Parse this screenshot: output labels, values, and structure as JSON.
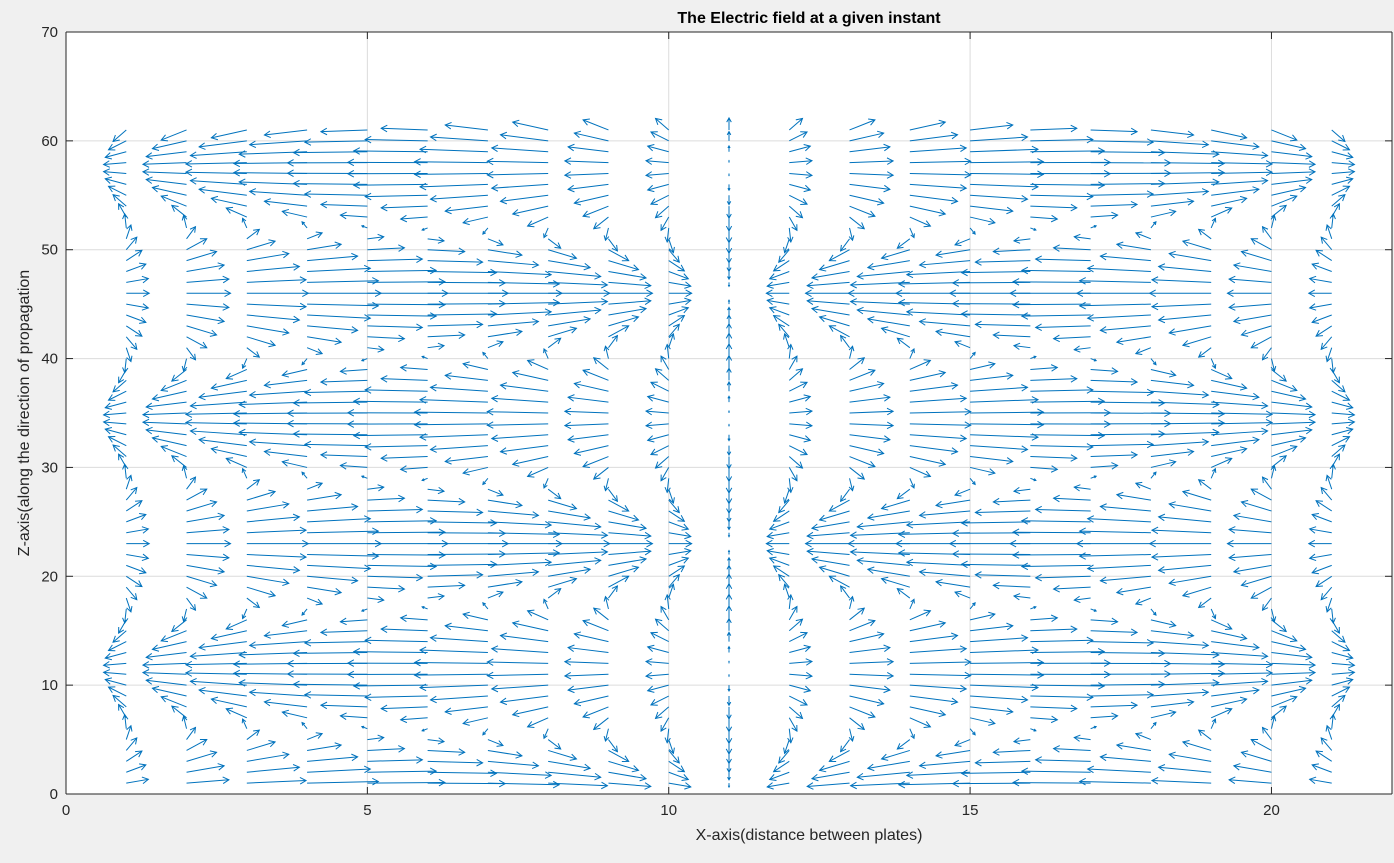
{
  "chart_data": {
    "type": "quiver",
    "title": "The Electric field at a given instant",
    "xlabel": "X-axis(distance between plates)",
    "ylabel": "Z-axis(along the direction of propagation",
    "xlim": [
      0,
      22
    ],
    "ylim": [
      0,
      70
    ],
    "xticks": [
      0,
      5,
      10,
      15,
      20
    ],
    "yticks": [
      0,
      10,
      20,
      30,
      40,
      50,
      60,
      70
    ],
    "grid": true,
    "box": "top-right",
    "series": [
      {
        "color": "#0072bd",
        "x_values": [
          1,
          2,
          3,
          4,
          5,
          6,
          7,
          8,
          9,
          10,
          11,
          12,
          13,
          14,
          15,
          16,
          17,
          18,
          19,
          20,
          21
        ],
        "z_range": [
          1,
          61
        ],
        "z_step": 1,
        "field": "standing-wave pattern: horizontal component Ex = sin(x*pi/11)*cos(z*pi/11.5), vertical component Ez = cos(x*pi/11)*sin(z*pi/11.5); arrow length ~1.35 x-units at peak"
      }
    ]
  }
}
